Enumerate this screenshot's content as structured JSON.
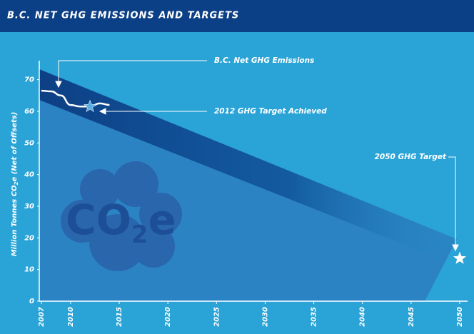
{
  "chart_data": {
    "type": "line",
    "title": "B.C. NET GHG EMISSIONS AND TARGETS",
    "ylabel": [
      "Million Tonnes CO",
      "2",
      "e (Net of Offsets)"
    ],
    "logo": [
      "CO",
      "2",
      "e"
    ],
    "x": [
      2007,
      2008,
      2009,
      2010,
      2011,
      2012,
      2013,
      2014
    ],
    "series": [
      {
        "name": "B.C. Net GHG Emissions",
        "color": "#ffffff",
        "values": [
          66.5,
          66.3,
          65,
          62,
          61.5,
          61.5,
          62.5,
          62
        ]
      }
    ],
    "targets": [
      {
        "label": "2012 GHG Target Achieved",
        "x": 2012,
        "value": 61.5,
        "color": "#5aaee0"
      },
      {
        "label": "2050 GHG Target",
        "x": 2050,
        "value": 13.5,
        "color": "#ffffff"
      }
    ],
    "xlim": [
      2007,
      2050
    ],
    "ylim": [
      0,
      76
    ],
    "xticks": [
      2007,
      2010,
      2015,
      2020,
      2025,
      2030,
      2035,
      2040,
      2045,
      2050
    ],
    "yticks": [
      0,
      10,
      20,
      30,
      40,
      50,
      60,
      70
    ]
  }
}
